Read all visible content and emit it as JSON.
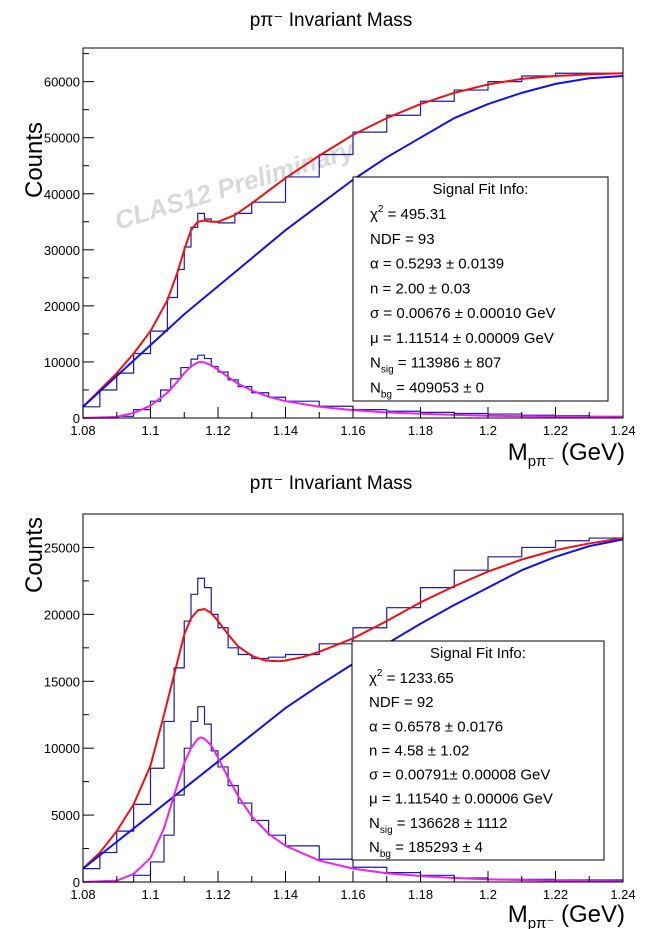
{
  "chart_data": [
    {
      "type": "line",
      "title": "pπ⁻ Invariant Mass",
      "xlabel": "M",
      "xlabel_sub": "pπ⁻",
      "xlabel_unit": " (GeV)",
      "ylabel": "Counts",
      "xlim": [
        1.08,
        1.24
      ],
      "ylim": [
        0,
        66000
      ],
      "x_ticks": [
        1.08,
        1.1,
        1.12,
        1.14,
        1.16,
        1.18,
        1.2,
        1.22,
        1.24
      ],
      "x_tick_labels": [
        "1.08",
        "1.1",
        "1.12",
        "1.14",
        "1.16",
        "1.18",
        "1.2",
        "1.22",
        "1.24"
      ],
      "y_ticks": [
        0,
        10000,
        20000,
        30000,
        40000,
        50000,
        60000
      ],
      "y_tick_labels": [
        "0",
        "10000",
        "20000",
        "30000",
        "40000",
        "50000",
        "60000"
      ],
      "watermark": "CLAS12 Preliminary",
      "series": [
        {
          "role": "data histogram",
          "style": "step",
          "color": "#1a1aa6",
          "x": [
            1.08,
            1.085,
            1.09,
            1.095,
            1.1,
            1.105,
            1.108,
            1.11,
            1.112,
            1.114,
            1.116,
            1.118,
            1.12,
            1.125,
            1.13,
            1.14,
            1.15,
            1.16,
            1.17,
            1.18,
            1.19,
            1.2,
            1.21,
            1.22,
            1.23,
            1.24
          ],
          "y": [
            2000,
            5000,
            8000,
            11500,
            15500,
            21500,
            26500,
            30500,
            34000,
            36500,
            35500,
            35000,
            34800,
            36500,
            38500,
            43000,
            47000,
            51000,
            54000,
            56500,
            58500,
            60000,
            61000,
            61500,
            61500,
            61500
          ]
        },
        {
          "role": "total fit",
          "style": "line",
          "color": "#ee1111",
          "x": [
            1.08,
            1.085,
            1.09,
            1.095,
            1.1,
            1.105,
            1.108,
            1.11,
            1.112,
            1.114,
            1.116,
            1.118,
            1.12,
            1.125,
            1.13,
            1.14,
            1.15,
            1.16,
            1.17,
            1.18,
            1.19,
            1.2,
            1.21,
            1.22,
            1.23,
            1.24
          ],
          "y": [
            2000,
            5000,
            8000,
            11500,
            15500,
            21000,
            26000,
            30000,
            33500,
            35000,
            35200,
            35000,
            35000,
            36200,
            38300,
            42800,
            46800,
            50500,
            53500,
            56000,
            58000,
            59500,
            60500,
            61000,
            61300,
            61500
          ]
        },
        {
          "role": "background fit",
          "style": "line",
          "color": "#1111ee",
          "x": [
            1.08,
            1.09,
            1.1,
            1.11,
            1.12,
            1.13,
            1.14,
            1.15,
            1.16,
            1.17,
            1.18,
            1.19,
            1.2,
            1.21,
            1.22,
            1.23,
            1.24
          ],
          "y": [
            2000,
            7500,
            13000,
            18500,
            23500,
            28500,
            33500,
            38000,
            42500,
            46500,
            50000,
            53500,
            56000,
            58000,
            59600,
            60600,
            61000
          ]
        },
        {
          "role": "signal histogram",
          "style": "step",
          "color": "#1a1aa6",
          "x": [
            1.08,
            1.085,
            1.09,
            1.095,
            1.1,
            1.103,
            1.106,
            1.109,
            1.112,
            1.114,
            1.116,
            1.118,
            1.12,
            1.123,
            1.126,
            1.13,
            1.135,
            1.14,
            1.15,
            1.16,
            1.17,
            1.18,
            1.19,
            1.2,
            1.21,
            1.22,
            1.23,
            1.24
          ],
          "y": [
            0,
            0,
            300,
            1500,
            3000,
            5000,
            7000,
            9000,
            10500,
            11200,
            10600,
            9200,
            8200,
            6800,
            5600,
            4500,
            3700,
            3000,
            2100,
            1500,
            1200,
            1000,
            800,
            700,
            500,
            400,
            300,
            300
          ]
        },
        {
          "role": "signal fit",
          "style": "line",
          "color": "#ee22ee",
          "x": [
            1.08,
            1.09,
            1.095,
            1.1,
            1.105,
            1.108,
            1.11,
            1.112,
            1.114,
            1.115,
            1.116,
            1.118,
            1.12,
            1.123,
            1.126,
            1.13,
            1.135,
            1.14,
            1.15,
            1.16,
            1.17,
            1.18,
            1.19,
            1.2,
            1.22,
            1.24
          ],
          "y": [
            0,
            200,
            900,
            2200,
            4500,
            6500,
            8000,
            9200,
            9900,
            10000,
            9900,
            9400,
            8600,
            7300,
            6100,
            4900,
            3800,
            3000,
            2000,
            1400,
            1000,
            750,
            550,
            400,
            250,
            150
          ]
        }
      ],
      "info_box": {
        "heading": "Signal Fit Info:",
        "lines": [
          {
            "label": "χ",
            "sup": "2",
            "sub": "",
            "value": " = 495.31"
          },
          {
            "label": "NDF",
            "sup": "",
            "sub": "",
            "value": " = 93"
          },
          {
            "label": "α",
            "sup": "",
            "sub": "",
            "value": " = 0.5293 ± 0.0139"
          },
          {
            "label": "n",
            "sup": "",
            "sub": "",
            "value": " = 2.00 ± 0.03"
          },
          {
            "label": "σ",
            "sup": "",
            "sub": "",
            "value": " = 0.00676 ± 0.00010 GeV"
          },
          {
            "label": "μ",
            "sup": "",
            "sub": "",
            "value": " = 1.11514 ± 0.00009 GeV"
          },
          {
            "label": "N",
            "sup": "",
            "sub": "sig",
            "value": " = 113986 ± 807"
          },
          {
            "label": "N",
            "sup": "",
            "sub": "bg",
            "value": " = 409053 ± 0"
          }
        ]
      }
    },
    {
      "type": "line",
      "title": "pπ⁻ Invariant Mass",
      "xlabel": "M",
      "xlabel_sub": "pπ⁻",
      "xlabel_unit": " (GeV)",
      "ylabel": "Counts",
      "xlim": [
        1.08,
        1.24
      ],
      "ylim": [
        0,
        27500
      ],
      "x_ticks": [
        1.08,
        1.1,
        1.12,
        1.14,
        1.16,
        1.18,
        1.2,
        1.22,
        1.24
      ],
      "x_tick_labels": [
        "1.08",
        "1.1",
        "1.12",
        "1.14",
        "1.16",
        "1.18",
        "1.2",
        "1.22",
        "1.24"
      ],
      "y_ticks": [
        0,
        5000,
        10000,
        15000,
        20000,
        25000
      ],
      "y_tick_labels": [
        "0",
        "5000",
        "10000",
        "15000",
        "20000",
        "25000"
      ],
      "watermark": "",
      "series": [
        {
          "role": "data histogram",
          "style": "step",
          "color": "#1a1aa6",
          "x": [
            1.08,
            1.085,
            1.09,
            1.095,
            1.1,
            1.104,
            1.107,
            1.11,
            1.112,
            1.114,
            1.116,
            1.118,
            1.12,
            1.123,
            1.126,
            1.13,
            1.135,
            1.14,
            1.15,
            1.16,
            1.17,
            1.18,
            1.19,
            1.2,
            1.21,
            1.22,
            1.23,
            1.24
          ],
          "y": [
            1000,
            2200,
            3800,
            5800,
            8500,
            12000,
            16000,
            19500,
            21500,
            22700,
            22000,
            20000,
            19000,
            17500,
            17000,
            16700,
            16800,
            17000,
            17800,
            19000,
            20500,
            22000,
            23300,
            24300,
            25000,
            25500,
            25700,
            26000
          ]
        },
        {
          "role": "total fit",
          "style": "line",
          "color": "#ee1111",
          "x": [
            1.08,
            1.085,
            1.09,
            1.095,
            1.1,
            1.104,
            1.108,
            1.11,
            1.112,
            1.114,
            1.116,
            1.118,
            1.12,
            1.123,
            1.126,
            1.13,
            1.134,
            1.138,
            1.14,
            1.145,
            1.15,
            1.16,
            1.17,
            1.18,
            1.19,
            1.2,
            1.21,
            1.22,
            1.23,
            1.24
          ],
          "y": [
            1000,
            2200,
            3800,
            5800,
            8700,
            12500,
            16500,
            18500,
            19700,
            20300,
            20400,
            20100,
            19500,
            18500,
            17600,
            16900,
            16550,
            16500,
            16550,
            16800,
            17200,
            18200,
            19500,
            20900,
            22100,
            23200,
            24100,
            24800,
            25300,
            25700
          ]
        },
        {
          "role": "background fit",
          "style": "line",
          "color": "#1111ee",
          "x": [
            1.08,
            1.09,
            1.1,
            1.11,
            1.12,
            1.13,
            1.14,
            1.15,
            1.16,
            1.17,
            1.18,
            1.19,
            1.2,
            1.21,
            1.22,
            1.23,
            1.24
          ],
          "y": [
            1000,
            3000,
            5000,
            7000,
            9000,
            11000,
            13000,
            14700,
            16300,
            17800,
            19300,
            20700,
            22000,
            23300,
            24300,
            25100,
            25600
          ]
        },
        {
          "role": "signal histogram",
          "style": "step",
          "color": "#1a1aa6",
          "x": [
            1.08,
            1.09,
            1.095,
            1.1,
            1.104,
            1.107,
            1.11,
            1.112,
            1.114,
            1.116,
            1.118,
            1.12,
            1.123,
            1.126,
            1.13,
            1.135,
            1.14,
            1.15,
            1.16,
            1.17,
            1.18,
            1.19,
            1.2,
            1.22,
            1.24
          ],
          "y": [
            0,
            0,
            500,
            1500,
            3500,
            6500,
            10000,
            12000,
            13100,
            11800,
            9800,
            8600,
            7200,
            5900,
            4600,
            3500,
            2700,
            1700,
            1100,
            700,
            500,
            300,
            200,
            150,
            100
          ]
        },
        {
          "role": "signal fit",
          "style": "line",
          "color": "#ee22ee",
          "x": [
            1.08,
            1.09,
            1.095,
            1.1,
            1.104,
            1.107,
            1.11,
            1.112,
            1.114,
            1.115,
            1.116,
            1.118,
            1.12,
            1.123,
            1.126,
            1.13,
            1.135,
            1.14,
            1.15,
            1.16,
            1.17,
            1.18,
            1.19,
            1.2,
            1.22,
            1.24
          ],
          "y": [
            0,
            100,
            600,
            1800,
            4000,
            6500,
            8900,
            10000,
            10700,
            10800,
            10700,
            10200,
            9300,
            7800,
            6400,
            4900,
            3600,
            2700,
            1600,
            1000,
            650,
            450,
            300,
            200,
            100,
            50
          ]
        }
      ],
      "info_box": {
        "heading": "Signal Fit Info:",
        "lines": [
          {
            "label": "χ",
            "sup": "2",
            "sub": "",
            "value": " = 1233.65"
          },
          {
            "label": "NDF",
            "sup": "",
            "sub": "",
            "value": " = 92"
          },
          {
            "label": "α",
            "sup": "",
            "sub": "",
            "value": " = 0.6578 ± 0.0176"
          },
          {
            "label": "n",
            "sup": "",
            "sub": "",
            "value": " = 4.58 ± 1.02"
          },
          {
            "label": "σ",
            "sup": "",
            "sub": "",
            "value": " = 0.00791± 0.00008 GeV"
          },
          {
            "label": "μ",
            "sup": "",
            "sub": "",
            "value": " = 1.11540 ± 0.00006 GeV"
          },
          {
            "label": "N",
            "sup": "",
            "sub": "sig",
            "value": " = 136628 ± 1112"
          },
          {
            "label": "N",
            "sup": "",
            "sub": "bg",
            "value": " = 185293 ± 4"
          }
        ]
      }
    }
  ]
}
